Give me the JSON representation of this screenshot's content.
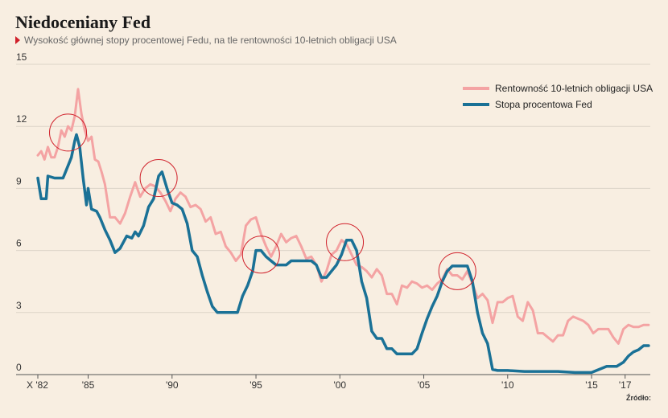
{
  "title": "Niedoceniany Fed",
  "subtitle": "Wysokość głównej stopy procentowej Fedu, na tle rentowności 10-letnich obligacji USA",
  "source_label": "Źródło:",
  "colors": {
    "background": "#f8eee1",
    "treasury": "#f4a3a3",
    "fed": "#1a7196",
    "circle": "#d0202a",
    "grid": "#dcd4c8"
  },
  "chart_data": {
    "type": "line",
    "ylim": [
      0,
      15
    ],
    "xlim": [
      1982,
      2018.5
    ],
    "y_ticks": [
      "0",
      "3",
      "6",
      "9",
      "12",
      "15"
    ],
    "x_ticks": [
      {
        "value": 1982,
        "label": "X '82"
      },
      {
        "value": 1985,
        "label": "'85"
      },
      {
        "value": 1990,
        "label": "'90"
      },
      {
        "value": 1995,
        "label": "'95"
      },
      {
        "value": 2000,
        "label": "'00"
      },
      {
        "value": 2005,
        "label": "'05"
      },
      {
        "value": 2010,
        "label": "'10"
      },
      {
        "value": 2015,
        "label": "'15"
      },
      {
        "value": 2017,
        "label": "'17"
      }
    ],
    "grid": true,
    "legend_position": "top-right",
    "series": [
      {
        "name": "Rentowność 10-letnich obligacji USA",
        "color": "#f4a3a3",
        "x": [
          1982.0,
          1982.2,
          1982.4,
          1982.6,
          1982.8,
          1983.0,
          1983.2,
          1983.4,
          1983.6,
          1983.8,
          1984.0,
          1984.2,
          1984.4,
          1984.6,
          1984.8,
          1985.0,
          1985.2,
          1985.4,
          1985.6,
          1985.8,
          1986.0,
          1986.3,
          1986.6,
          1986.9,
          1987.2,
          1987.5,
          1987.8,
          1988.1,
          1988.4,
          1988.7,
          1989.0,
          1989.3,
          1989.6,
          1989.9,
          1990.2,
          1990.5,
          1990.8,
          1991.1,
          1991.4,
          1991.7,
          1992.0,
          1992.3,
          1992.6,
          1992.9,
          1993.2,
          1993.5,
          1993.8,
          1994.1,
          1994.4,
          1994.7,
          1995.0,
          1995.3,
          1995.6,
          1995.9,
          1996.2,
          1996.5,
          1996.8,
          1997.1,
          1997.4,
          1997.7,
          1998.0,
          1998.3,
          1998.6,
          1998.9,
          1999.2,
          1999.5,
          1999.8,
          2000.1,
          2000.4,
          2000.7,
          2001.0,
          2001.3,
          2001.6,
          2001.9,
          2002.2,
          2002.5,
          2002.8,
          2003.1,
          2003.4,
          2003.7,
          2004.0,
          2004.3,
          2004.6,
          2004.9,
          2005.2,
          2005.5,
          2005.8,
          2006.1,
          2006.4,
          2006.7,
          2007.0,
          2007.3,
          2007.6,
          2007.9,
          2008.2,
          2008.5,
          2008.8,
          2009.1,
          2009.4,
          2009.7,
          2010.0,
          2010.3,
          2010.6,
          2010.9,
          2011.2,
          2011.5,
          2011.8,
          2012.1,
          2012.4,
          2012.7,
          2013.0,
          2013.3,
          2013.6,
          2013.9,
          2014.2,
          2014.5,
          2014.8,
          2015.1,
          2015.4,
          2015.7,
          2016.0,
          2016.3,
          2016.6,
          2016.9,
          2017.2,
          2017.5,
          2017.8,
          2018.1,
          2018.4
        ],
        "values": [
          10.6,
          10.8,
          10.4,
          11.0,
          10.5,
          10.5,
          11.0,
          11.8,
          11.5,
          12.0,
          11.8,
          12.5,
          13.8,
          12.6,
          11.8,
          11.3,
          11.5,
          10.4,
          10.3,
          9.8,
          9.2,
          7.6,
          7.6,
          7.3,
          7.8,
          8.6,
          9.3,
          8.6,
          9.0,
          9.2,
          9.1,
          8.8,
          8.4,
          7.9,
          8.5,
          8.8,
          8.6,
          8.1,
          8.2,
          8.0,
          7.4,
          7.6,
          6.8,
          6.9,
          6.2,
          5.9,
          5.5,
          5.8,
          7.2,
          7.5,
          7.6,
          6.8,
          6.2,
          5.7,
          6.2,
          6.8,
          6.4,
          6.6,
          6.7,
          6.2,
          5.6,
          5.7,
          5.3,
          4.5,
          5.0,
          5.8,
          6.0,
          6.5,
          6.3,
          5.8,
          5.3,
          5.2,
          5.0,
          4.7,
          5.1,
          4.8,
          3.9,
          3.9,
          3.4,
          4.3,
          4.2,
          4.5,
          4.4,
          4.2,
          4.3,
          4.1,
          4.4,
          4.6,
          5.1,
          4.8,
          4.8,
          4.6,
          5.0,
          4.4,
          3.7,
          3.9,
          3.6,
          2.5,
          3.5,
          3.5,
          3.7,
          3.8,
          2.8,
          2.6,
          3.5,
          3.1,
          2.0,
          2.0,
          1.8,
          1.6,
          1.9,
          1.9,
          2.6,
          2.8,
          2.7,
          2.6,
          2.4,
          2.0,
          2.2,
          2.2,
          2.2,
          1.8,
          1.5,
          2.2,
          2.4,
          2.3,
          2.3,
          2.4,
          2.4
        ]
      },
      {
        "name": "Stopa procentowa Fed",
        "color": "#1a7196",
        "x": [
          1982.0,
          1982.2,
          1982.5,
          1982.6,
          1983.0,
          1983.5,
          1983.6,
          1984.0,
          1984.2,
          1984.3,
          1984.5,
          1984.7,
          1984.9,
          1985.0,
          1985.2,
          1985.5,
          1985.7,
          1986.0,
          1986.3,
          1986.6,
          1986.9,
          1987.3,
          1987.6,
          1987.8,
          1988.0,
          1988.3,
          1988.6,
          1988.9,
          1989.2,
          1989.4,
          1989.7,
          1990.0,
          1990.3,
          1990.6,
          1990.9,
          1991.2,
          1991.5,
          1991.8,
          1992.1,
          1992.4,
          1992.7,
          1993.0,
          1993.3,
          1993.6,
          1993.9,
          1994.2,
          1994.5,
          1994.8,
          1995.0,
          1995.3,
          1995.6,
          1995.9,
          1996.2,
          1996.5,
          1996.8,
          1997.1,
          1997.4,
          1997.7,
          1998.0,
          1998.3,
          1998.6,
          1998.9,
          1999.2,
          1999.5,
          1999.8,
          2000.1,
          2000.4,
          2000.7,
          2001.0,
          2001.3,
          2001.6,
          2001.9,
          2002.2,
          2002.5,
          2002.8,
          2003.1,
          2003.4,
          2003.7,
          2004.0,
          2004.3,
          2004.6,
          2004.9,
          2005.2,
          2005.5,
          2005.8,
          2006.1,
          2006.4,
          2006.7,
          2007.0,
          2007.3,
          2007.6,
          2007.9,
          2008.2,
          2008.5,
          2008.8,
          2009.1,
          2009.4,
          2009.7,
          2010.0,
          2011.0,
          2012.0,
          2013.0,
          2014.0,
          2015.0,
          2015.9,
          2016.2,
          2016.5,
          2016.9,
          2017.2,
          2017.5,
          2017.8,
          2018.1,
          2018.4
        ],
        "values": [
          9.5,
          8.5,
          8.5,
          9.6,
          9.5,
          9.5,
          9.7,
          10.5,
          11.3,
          11.6,
          11.0,
          9.5,
          8.2,
          9.0,
          8.0,
          7.9,
          7.6,
          7.0,
          6.5,
          5.9,
          6.1,
          6.7,
          6.6,
          6.9,
          6.7,
          7.2,
          8.1,
          8.5,
          9.6,
          9.8,
          9.0,
          8.3,
          8.2,
          8.0,
          7.3,
          6.0,
          5.7,
          4.8,
          4.0,
          3.3,
          3.0,
          3.0,
          3.0,
          3.0,
          3.0,
          3.8,
          4.3,
          5.0,
          6.0,
          6.0,
          5.7,
          5.5,
          5.3,
          5.3,
          5.3,
          5.5,
          5.5,
          5.5,
          5.5,
          5.5,
          5.3,
          4.7,
          4.7,
          5.0,
          5.3,
          5.8,
          6.5,
          6.5,
          6.0,
          4.5,
          3.7,
          2.1,
          1.75,
          1.75,
          1.25,
          1.25,
          1.0,
          1.0,
          1.0,
          1.0,
          1.25,
          2.0,
          2.7,
          3.3,
          3.8,
          4.5,
          5.0,
          5.25,
          5.25,
          5.25,
          5.25,
          4.5,
          3.0,
          2.0,
          1.5,
          0.25,
          0.2,
          0.2,
          0.2,
          0.15,
          0.15,
          0.15,
          0.1,
          0.1,
          0.4,
          0.4,
          0.4,
          0.6,
          0.9,
          1.1,
          1.2,
          1.4,
          1.4
        ]
      }
    ],
    "annotations": [
      {
        "type": "circle",
        "x": 1983.8,
        "y": 11.7
      },
      {
        "type": "circle",
        "x": 1989.2,
        "y": 9.5
      },
      {
        "type": "circle",
        "x": 1995.3,
        "y": 5.8
      },
      {
        "type": "circle",
        "x": 2000.3,
        "y": 6.4
      },
      {
        "type": "circle",
        "x": 2007.0,
        "y": 5.0
      }
    ]
  }
}
